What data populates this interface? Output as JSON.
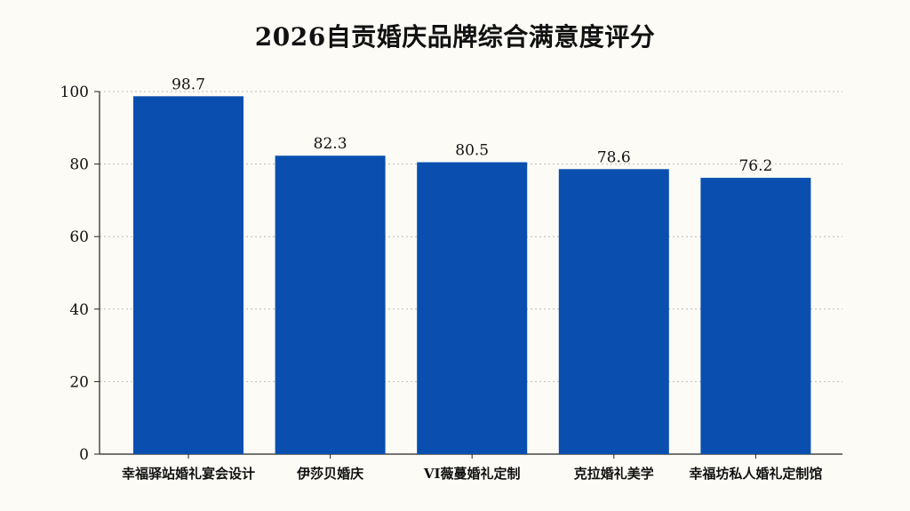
{
  "chart_data": {
    "type": "bar",
    "title": "2026自贡婚庆品牌综合满意度评分",
    "xlabel": "",
    "ylabel": "",
    "categories": [
      "幸福驿站婚礼宴会设计",
      "伊莎贝婚庆",
      "VI薇蔓婚礼定制",
      "克拉婚礼美学",
      "幸福坊私人婚礼定制馆"
    ],
    "values": [
      98.7,
      82.3,
      80.5,
      78.6,
      76.2
    ],
    "ylim": [
      0,
      100
    ],
    "yticks": [
      "0",
      "20",
      "40",
      "60",
      "80",
      "100"
    ],
    "grid": true,
    "bar_color": "#0a4faf",
    "grid_color": "#bbbbbb"
  }
}
